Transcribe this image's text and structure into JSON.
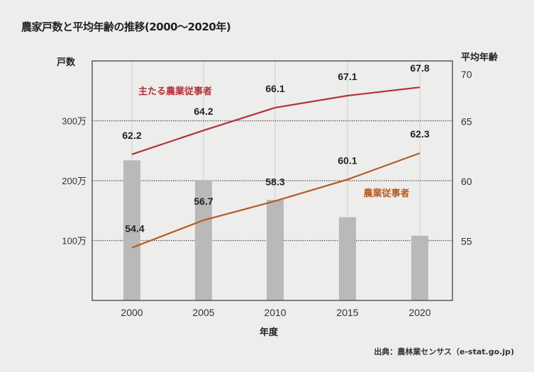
{
  "chart_data": {
    "type": "bar+line",
    "title": "農家戸数と平均年齢の推移(2000〜2020年)",
    "xlabel": "年度",
    "ylabel_left": "戸数",
    "ylabel_right": "平均年齢",
    "categories": [
      "2000",
      "2005",
      "2010",
      "2015",
      "2020"
    ],
    "left_axis": {
      "ylim": [
        0,
        400
      ],
      "unit": "万",
      "ticks": [
        100,
        200,
        300
      ],
      "tick_labels": [
        "100万",
        "200万",
        "300万"
      ]
    },
    "right_axis": {
      "ylim": [
        50,
        70
      ],
      "ticks": [
        55,
        60,
        65,
        70
      ],
      "tick_labels": [
        "55",
        "60",
        "65",
        "70"
      ]
    },
    "bars": {
      "axis": "left",
      "values": [
        234,
        200,
        168,
        139,
        108
      ],
      "color": "#b9b9b7"
    },
    "series": [
      {
        "name": "主たる農業従事者",
        "axis": "right",
        "values": [
          62.2,
          64.2,
          66.1,
          67.1,
          67.8
        ],
        "labels": [
          "62.2",
          "64.2",
          "66.1",
          "67.1",
          "67.8"
        ],
        "color": "#b5313b"
      },
      {
        "name": "農業従事者",
        "axis": "right",
        "values": [
          54.4,
          56.7,
          58.3,
          60.1,
          62.3
        ],
        "labels": [
          "54.4",
          "56.7",
          "58.3",
          "60.1",
          "62.3"
        ],
        "color": "#b55a22"
      }
    ],
    "grid": "horizontal dotted, vertical solid",
    "source": "出典：農林業センサス（e-stat.go.jp)"
  }
}
